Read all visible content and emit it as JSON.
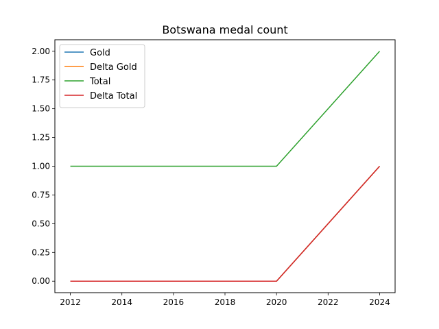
{
  "chart_data": {
    "type": "line",
    "title": "Botswana medal count",
    "xlabel": "",
    "ylabel": "",
    "x": [
      2012,
      2016,
      2020,
      2024
    ],
    "series": [
      {
        "name": "Gold",
        "values": [
          0,
          0,
          0,
          1
        ],
        "color": "#1f77b4"
      },
      {
        "name": "Delta Gold",
        "values": [
          0,
          0,
          0,
          1
        ],
        "color": "#ff7f0e"
      },
      {
        "name": "Total",
        "values": [
          1,
          1,
          1,
          2
        ],
        "color": "#2ca02c"
      },
      {
        "name": "Delta Total",
        "values": [
          0,
          0,
          0,
          1
        ],
        "color": "#d62728"
      }
    ],
    "xlim": [
      2011.4,
      2024.6
    ],
    "ylim": [
      -0.1,
      2.1
    ],
    "x_ticks": [
      2012,
      2014,
      2016,
      2018,
      2020,
      2022,
      2024
    ],
    "x_tick_labels": [
      "2012",
      "2014",
      "2016",
      "2018",
      "2020",
      "2022",
      "2024"
    ],
    "y_ticks": [
      0,
      0.25,
      0.5,
      0.75,
      1.0,
      1.25,
      1.5,
      1.75,
      2.0
    ],
    "y_tick_labels": [
      "0.00",
      "0.25",
      "0.50",
      "0.75",
      "1.00",
      "1.25",
      "1.50",
      "1.75",
      "2.00"
    ],
    "grid": false,
    "legend_position": "top-left"
  }
}
